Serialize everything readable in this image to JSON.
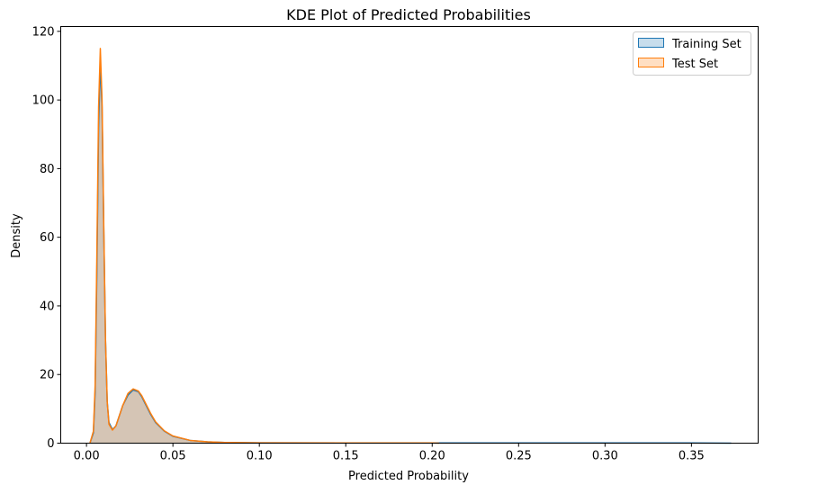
{
  "chart_data": {
    "type": "area",
    "title": "KDE Plot of Predicted Probabilities",
    "xlabel": "Predicted Probability",
    "ylabel": "Density",
    "xlim": [
      -0.0149,
      0.3886
    ],
    "ylim": [
      0,
      121.4
    ],
    "xticks": [
      0.0,
      0.05,
      0.1,
      0.15,
      0.2,
      0.25,
      0.3,
      0.35
    ],
    "xtick_labels": [
      "0.00",
      "0.05",
      "0.10",
      "0.15",
      "0.20",
      "0.25",
      "0.30",
      "0.35"
    ],
    "yticks": [
      0,
      20,
      40,
      60,
      80,
      100,
      120
    ],
    "ytick_labels": [
      "0",
      "20",
      "40",
      "60",
      "80",
      "100",
      "120"
    ],
    "grid": false,
    "legend_position": "top-right",
    "series": [
      {
        "name": "Training Set",
        "color": "#1f77b4",
        "x": [
          0.002,
          0.004,
          0.005,
          0.006,
          0.007,
          0.008,
          0.009,
          0.01,
          0.011,
          0.012,
          0.013,
          0.015,
          0.017,
          0.019,
          0.021,
          0.024,
          0.027,
          0.03,
          0.032,
          0.034,
          0.037,
          0.04,
          0.045,
          0.05,
          0.06,
          0.07,
          0.08,
          0.1,
          0.15,
          0.2,
          0.25,
          0.3,
          0.35,
          0.373
        ],
        "y": [
          0.0,
          3.0,
          15.0,
          50.0,
          92.0,
          111.0,
          98.0,
          62.0,
          30.0,
          12.0,
          6.0,
          4.0,
          5.0,
          8.0,
          11.0,
          14.0,
          15.5,
          15.0,
          13.5,
          11.5,
          8.5,
          6.0,
          3.5,
          2.0,
          0.8,
          0.4,
          0.2,
          0.1,
          0.05,
          0.05,
          0.05,
          0.05,
          0.05,
          0.0
        ]
      },
      {
        "name": "Test Set",
        "color": "#ff7f0e",
        "x": [
          0.002,
          0.004,
          0.005,
          0.006,
          0.007,
          0.008,
          0.009,
          0.01,
          0.011,
          0.012,
          0.013,
          0.015,
          0.017,
          0.019,
          0.021,
          0.024,
          0.027,
          0.03,
          0.032,
          0.034,
          0.037,
          0.04,
          0.045,
          0.05,
          0.06,
          0.07,
          0.08,
          0.1,
          0.15,
          0.2,
          0.204
        ],
        "y": [
          0.0,
          3.5,
          17.0,
          55.0,
          98.0,
          115.0,
          100.0,
          63.0,
          30.0,
          12.0,
          5.5,
          3.8,
          5.0,
          8.0,
          11.0,
          14.5,
          15.8,
          15.2,
          13.8,
          11.8,
          8.8,
          6.2,
          3.6,
          2.1,
          0.8,
          0.4,
          0.2,
          0.1,
          0.05,
          0.05,
          0.0
        ]
      }
    ]
  }
}
